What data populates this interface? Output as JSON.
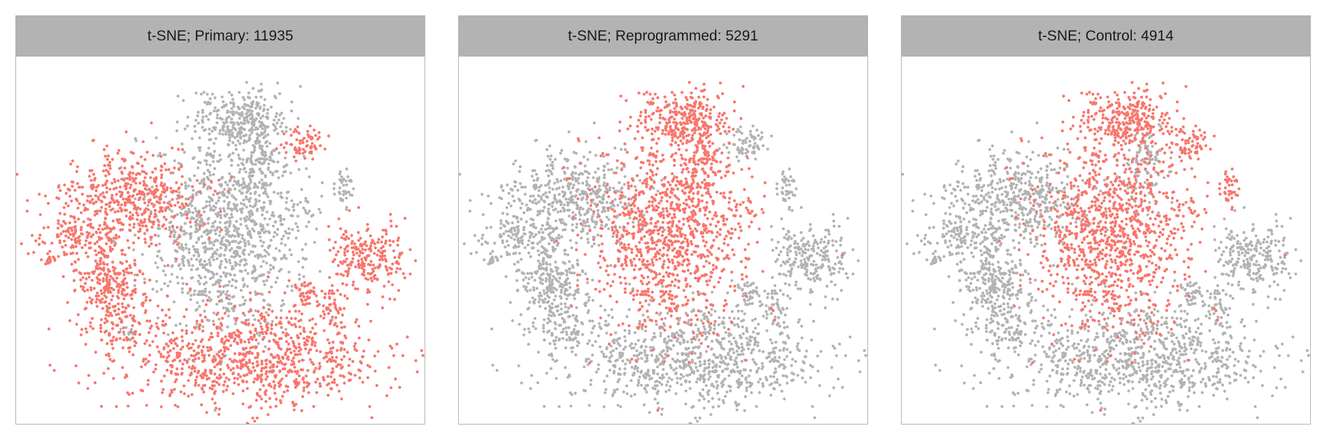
{
  "colors": {
    "highlight": "#f8766d",
    "background_points": "#b3b3b3",
    "strip_fill": "#b3b3b3",
    "strip_text": "#1a1a1a",
    "panel_border": "#b3b3b3"
  },
  "chart_data": {
    "type": "scatter",
    "xlabel": "",
    "ylabel": "",
    "xlim": [
      0,
      100
    ],
    "ylim": [
      0,
      100
    ],
    "grid": false,
    "legend": "none",
    "panels": [
      {
        "title": "t-SNE; Primary: 11935",
        "highlight": [
          "left",
          "upper-left",
          "left-mid",
          "left-lower",
          "right-ring",
          "bottom",
          "tiny-far-left",
          "mid-right-small",
          "right-small",
          "upper-right-small"
        ]
      },
      {
        "title": "t-SNE; Reprogrammed: 5291",
        "highlight": [
          "center",
          "upper-right-arm",
          "top"
        ]
      },
      {
        "title": "t-SNE; Control: 4914",
        "highlight": [
          "center",
          "top",
          "upper-right-small",
          "right-arm-tip"
        ]
      }
    ],
    "clusters": [
      {
        "id": "top",
        "center": [
          55,
          86
        ],
        "spread": [
          6,
          4
        ],
        "n": 260
      },
      {
        "id": "upper-right-arm",
        "center": [
          60,
          72
        ],
        "spread": [
          3,
          6
        ],
        "n": 110
      },
      {
        "id": "upper-right-small",
        "center": [
          72,
          79
        ],
        "spread": [
          2.5,
          2.5
        ],
        "n": 70
      },
      {
        "id": "right-arm-tip",
        "center": [
          83,
          66
        ],
        "spread": [
          1.5,
          3
        ],
        "n": 40
      },
      {
        "id": "upper-left",
        "center": [
          26,
          62
        ],
        "spread": [
          10,
          7
        ],
        "n": 520
      },
      {
        "id": "left",
        "center": [
          13,
          50
        ],
        "spread": [
          6,
          3
        ],
        "n": 120
      },
      {
        "id": "tiny-far-left",
        "center": [
          5,
          44
        ],
        "spread": [
          0.8,
          0.8
        ],
        "n": 12
      },
      {
        "id": "center",
        "center": [
          52,
          52
        ],
        "spread": [
          10,
          15
        ],
        "n": 1100
      },
      {
        "id": "left-mid",
        "center": [
          20,
          40
        ],
        "spread": [
          4,
          3
        ],
        "n": 110
      },
      {
        "id": "left-lower",
        "center": [
          22,
          30
        ],
        "spread": [
          5,
          6
        ],
        "n": 200
      },
      {
        "id": "right-ring",
        "center": [
          89,
          45
        ],
        "spread": [
          5,
          5
        ],
        "n": 230
      },
      {
        "id": "mid-right-small",
        "center": [
          72,
          34
        ],
        "spread": [
          2,
          2
        ],
        "n": 40
      },
      {
        "id": "right-small",
        "center": [
          80,
          30
        ],
        "spread": [
          2,
          3
        ],
        "n": 50
      },
      {
        "id": "bottom",
        "center": [
          58,
          15
        ],
        "spread": [
          17,
          8
        ],
        "n": 900
      },
      {
        "id": "tiny-bottom-left",
        "center": [
          25,
          22
        ],
        "spread": [
          1.5,
          1
        ],
        "n": 15
      }
    ]
  }
}
